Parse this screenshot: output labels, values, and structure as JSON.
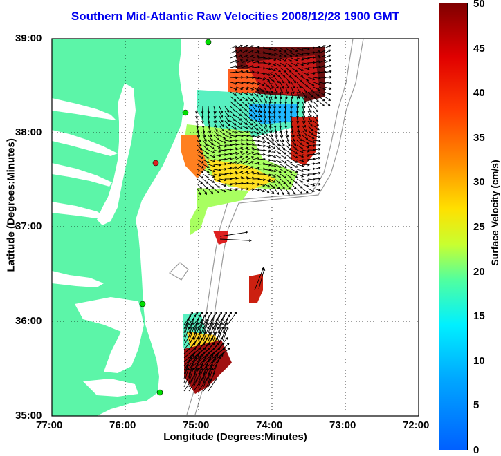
{
  "title": "Southern Mid-Atlantic Raw Velocities 2008/12/28 1900 GMT",
  "xlabel": "Longitude (Degrees:Minutes)",
  "ylabel": "Latitude (Degrees:Minutes)",
  "x_ticks": [
    "77:00",
    "76:00",
    "75:00",
    "74:00",
    "73:00",
    "72:00"
  ],
  "y_ticks": [
    "39:00",
    "38:00",
    "37:00",
    "36:00",
    "35:00"
  ],
  "colorbar": {
    "label": "Surface Velocity (cm/s)",
    "ticks": [
      "50",
      "45",
      "40",
      "35",
      "30",
      "25",
      "20",
      "15",
      "10",
      "5",
      "0"
    ],
    "min": 0,
    "max": 50
  },
  "map_extent": {
    "lon": [
      -77,
      -72
    ],
    "lat": [
      35,
      39
    ]
  },
  "colors": {
    "land": "#5cf5a8",
    "title": "#0000ee",
    "station": "#00dd00"
  }
}
